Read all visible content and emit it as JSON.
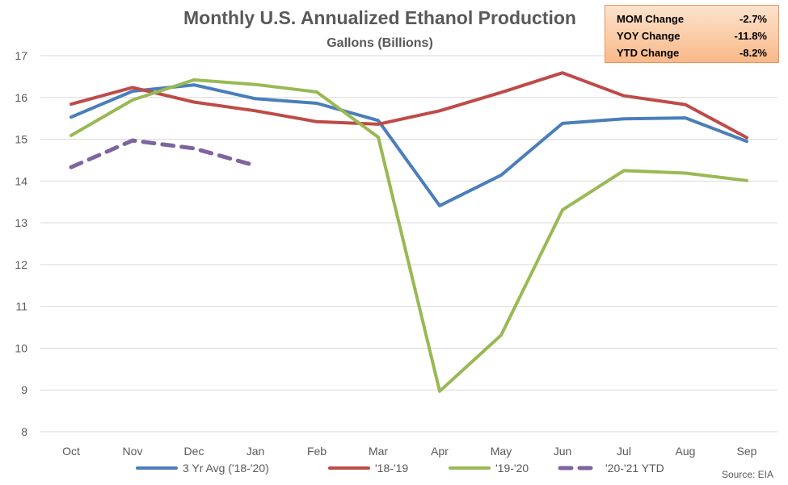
{
  "chart_data": {
    "type": "line",
    "title": "Monthly U.S. Annualized Ethanol Production",
    "subtitle": "Gallons (Billions)",
    "categories": [
      "Oct",
      "Nov",
      "Dec",
      "Jan",
      "Feb",
      "Mar",
      "Apr",
      "May",
      "Jun",
      "Jul",
      "Aug",
      "Sep"
    ],
    "ylim": [
      8,
      17
    ],
    "yticks": [
      8,
      9,
      10,
      11,
      12,
      13,
      14,
      15,
      16,
      17
    ],
    "grid": true,
    "legend_position": "bottom",
    "series": [
      {
        "name": "3 Yr Avg ('18-'20)",
        "color": "#4a7ebb",
        "dashed": false,
        "values": [
          15.53,
          16.15,
          16.3,
          15.97,
          15.86,
          15.45,
          13.41,
          14.14,
          15.38,
          15.49,
          15.51,
          14.95
        ]
      },
      {
        "name": "'18-'19",
        "color": "#be4b48",
        "dashed": false,
        "values": [
          15.84,
          16.24,
          15.89,
          15.68,
          15.42,
          15.36,
          15.68,
          16.12,
          16.59,
          16.04,
          15.83,
          15.04
        ]
      },
      {
        "name": "'19-'20",
        "color": "#98b954",
        "dashed": false,
        "values": [
          15.09,
          15.94,
          16.42,
          16.31,
          16.13,
          15.05,
          8.97,
          10.31,
          13.31,
          14.25,
          14.19,
          14.01
        ]
      },
      {
        "name": "'20-'21 YTD",
        "color": "#7e64a0",
        "dashed": true,
        "values": [
          14.33,
          14.97,
          14.78,
          14.37,
          null,
          null,
          null,
          null,
          null,
          null,
          null,
          null
        ]
      }
    ]
  },
  "stats": [
    {
      "label": "MOM Change",
      "value": "-2.7%"
    },
    {
      "label": "YOY Change",
      "value": "-11.8%"
    },
    {
      "label": "YTD Change",
      "value": "-8.2%"
    }
  ],
  "source": "Source: EIA"
}
